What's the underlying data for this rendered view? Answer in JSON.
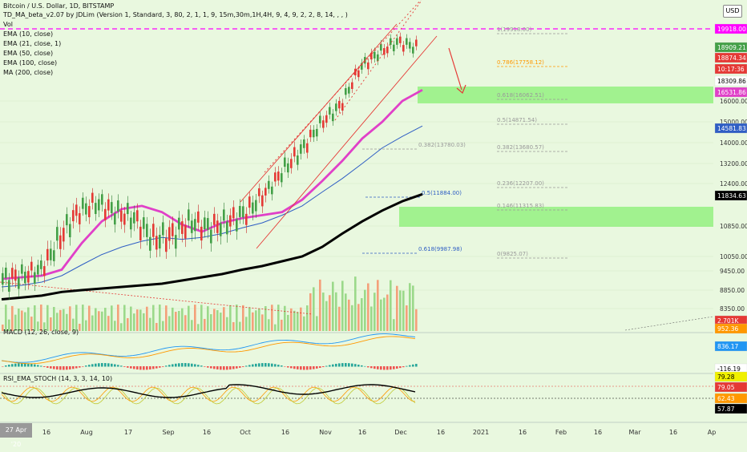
{
  "header": {
    "title": "Bitcoin / U.S. Dollar, 1D, BITSTAMP",
    "indicator_td": "TD_MA_beta_v2.07 by JDLim (Version 1, Standard, 3, 80, 2, 1, 1, 9, 15m,30m,1H,4H, 9, 4, 9, 2, 2, 8, 14, , , )",
    "vol": "Vol",
    "ema10": "EMA (10, close)",
    "ema21": "EMA (21, close, 1)",
    "ema50": "EMA (50, close)",
    "ema100": "EMA (100, close)",
    "ma200": "MA (200, close)",
    "macd": "MACD (12, 26, close, 9)",
    "rsi": "RSI_EMA_STOCH (14, 3, 3, 14, 10)",
    "currency": "USD",
    "date_cursor": "27 Apr '20"
  },
  "colors": {
    "background": "#e9f8df",
    "up": "#43a047",
    "down": "#e53935",
    "ema_pink": "#e040c8",
    "ema_blue": "#2f5ec4",
    "ma200": "#000000",
    "resistance": "#ff00ff",
    "demand_zone": "#8ef07a"
  },
  "chart_data": {
    "type": "line",
    "title": "Bitcoin / U.S. Dollar, 1D, BITSTAMP",
    "xlabel": "",
    "ylabel": "",
    "x_ticks": [
      "16",
      "Aug",
      "17",
      "Sep",
      "16",
      "Oct",
      "16",
      "Nov",
      "16",
      "Dec",
      "16",
      "2021",
      "16",
      "Feb",
      "16",
      "Mar",
      "16",
      "Ap"
    ],
    "y_ticks": [
      "16000.00",
      "15000.00",
      "14000.00",
      "13200.00",
      "12400.00",
      "10850.00",
      "10050.00",
      "9450.00",
      "8850.00",
      "8350.00"
    ],
    "ylim": [
      7850,
      20700
    ],
    "grid": true,
    "price_labels": [
      {
        "text": "19918.00",
        "color": "#ff00ff"
      },
      {
        "text": "18909.21",
        "color": "#43a047"
      },
      {
        "text": "18874.34",
        "color": "#e53935"
      },
      {
        "text": "10:17:36",
        "color": "#e53935"
      },
      {
        "text": "18309.86",
        "color": "#ffffff"
      },
      {
        "text": "16531.86",
        "color": "#e040c8"
      },
      {
        "text": "14581.83",
        "color": "#2f5ec4"
      },
      {
        "text": "11834.63",
        "color": "#000000"
      },
      {
        "text": "2.701K",
        "color": "#e53935"
      },
      {
        "text": "952.36",
        "color": "#ff9800"
      },
      {
        "text": "836.17",
        "color": "#2196f3"
      },
      {
        "text": "-116.19",
        "color": "#ffffff"
      },
      {
        "text": "79.28",
        "color": "#f0f000"
      },
      {
        "text": "79.05",
        "color": "#e53935"
      },
      {
        "text": "62.43",
        "color": "#ff9800"
      },
      {
        "text": "57.87",
        "color": "#000000"
      }
    ],
    "fib_levels": [
      {
        "text": "1(19918.00)",
        "value": 19918
      },
      {
        "text": "0.786(17758.12)",
        "value": 17758.12
      },
      {
        "text": "0.618(16062.51)",
        "value": 16062.51
      },
      {
        "text": "0.5(14871.54)",
        "value": 14871.54
      },
      {
        "text": "0.382(13780.03)",
        "value": 13780.03
      },
      {
        "text": "0.382(13680.57)",
        "value": 13680.57
      },
      {
        "text": "0.236(12207.00)",
        "value": 12207
      },
      {
        "text": "0.5(11884.00)",
        "value": 11884
      },
      {
        "text": "0.146(11315.83)",
        "value": 11315.83
      },
      {
        "text": "0.618(9987.98)",
        "value": 9987.98
      },
      {
        "text": "0(9825.07)",
        "value": 9825.07
      }
    ],
    "series": [
      {
        "name": "EMA (21, close, 1)",
        "values": [
          9200,
          9250,
          9300,
          9500,
          10400,
          11000,
          11400,
          11500,
          11300,
          10900,
          10700,
          10950,
          11100,
          11200,
          11300,
          11700,
          12500,
          13300,
          14200,
          15000,
          16000,
          16600
        ]
      },
      {
        "name": "EMA (50, close)",
        "values": [
          8950,
          9000,
          9100,
          9300,
          9700,
          10100,
          10300,
          10450,
          10550,
          10500,
          10550,
          10650,
          10800,
          10950,
          11200,
          11500,
          12000,
          12600,
          13200,
          13800,
          14300,
          14800
        ]
      },
      {
        "name": "MA (200, close)",
        "values": [
          8600,
          8650,
          8700,
          8800,
          8850,
          8900,
          8950,
          9000,
          9050,
          9150,
          9250,
          9350,
          9500,
          9650,
          9850,
          10050,
          10300,
          10650,
          11000,
          11350,
          11650,
          11900
        ]
      }
    ]
  }
}
